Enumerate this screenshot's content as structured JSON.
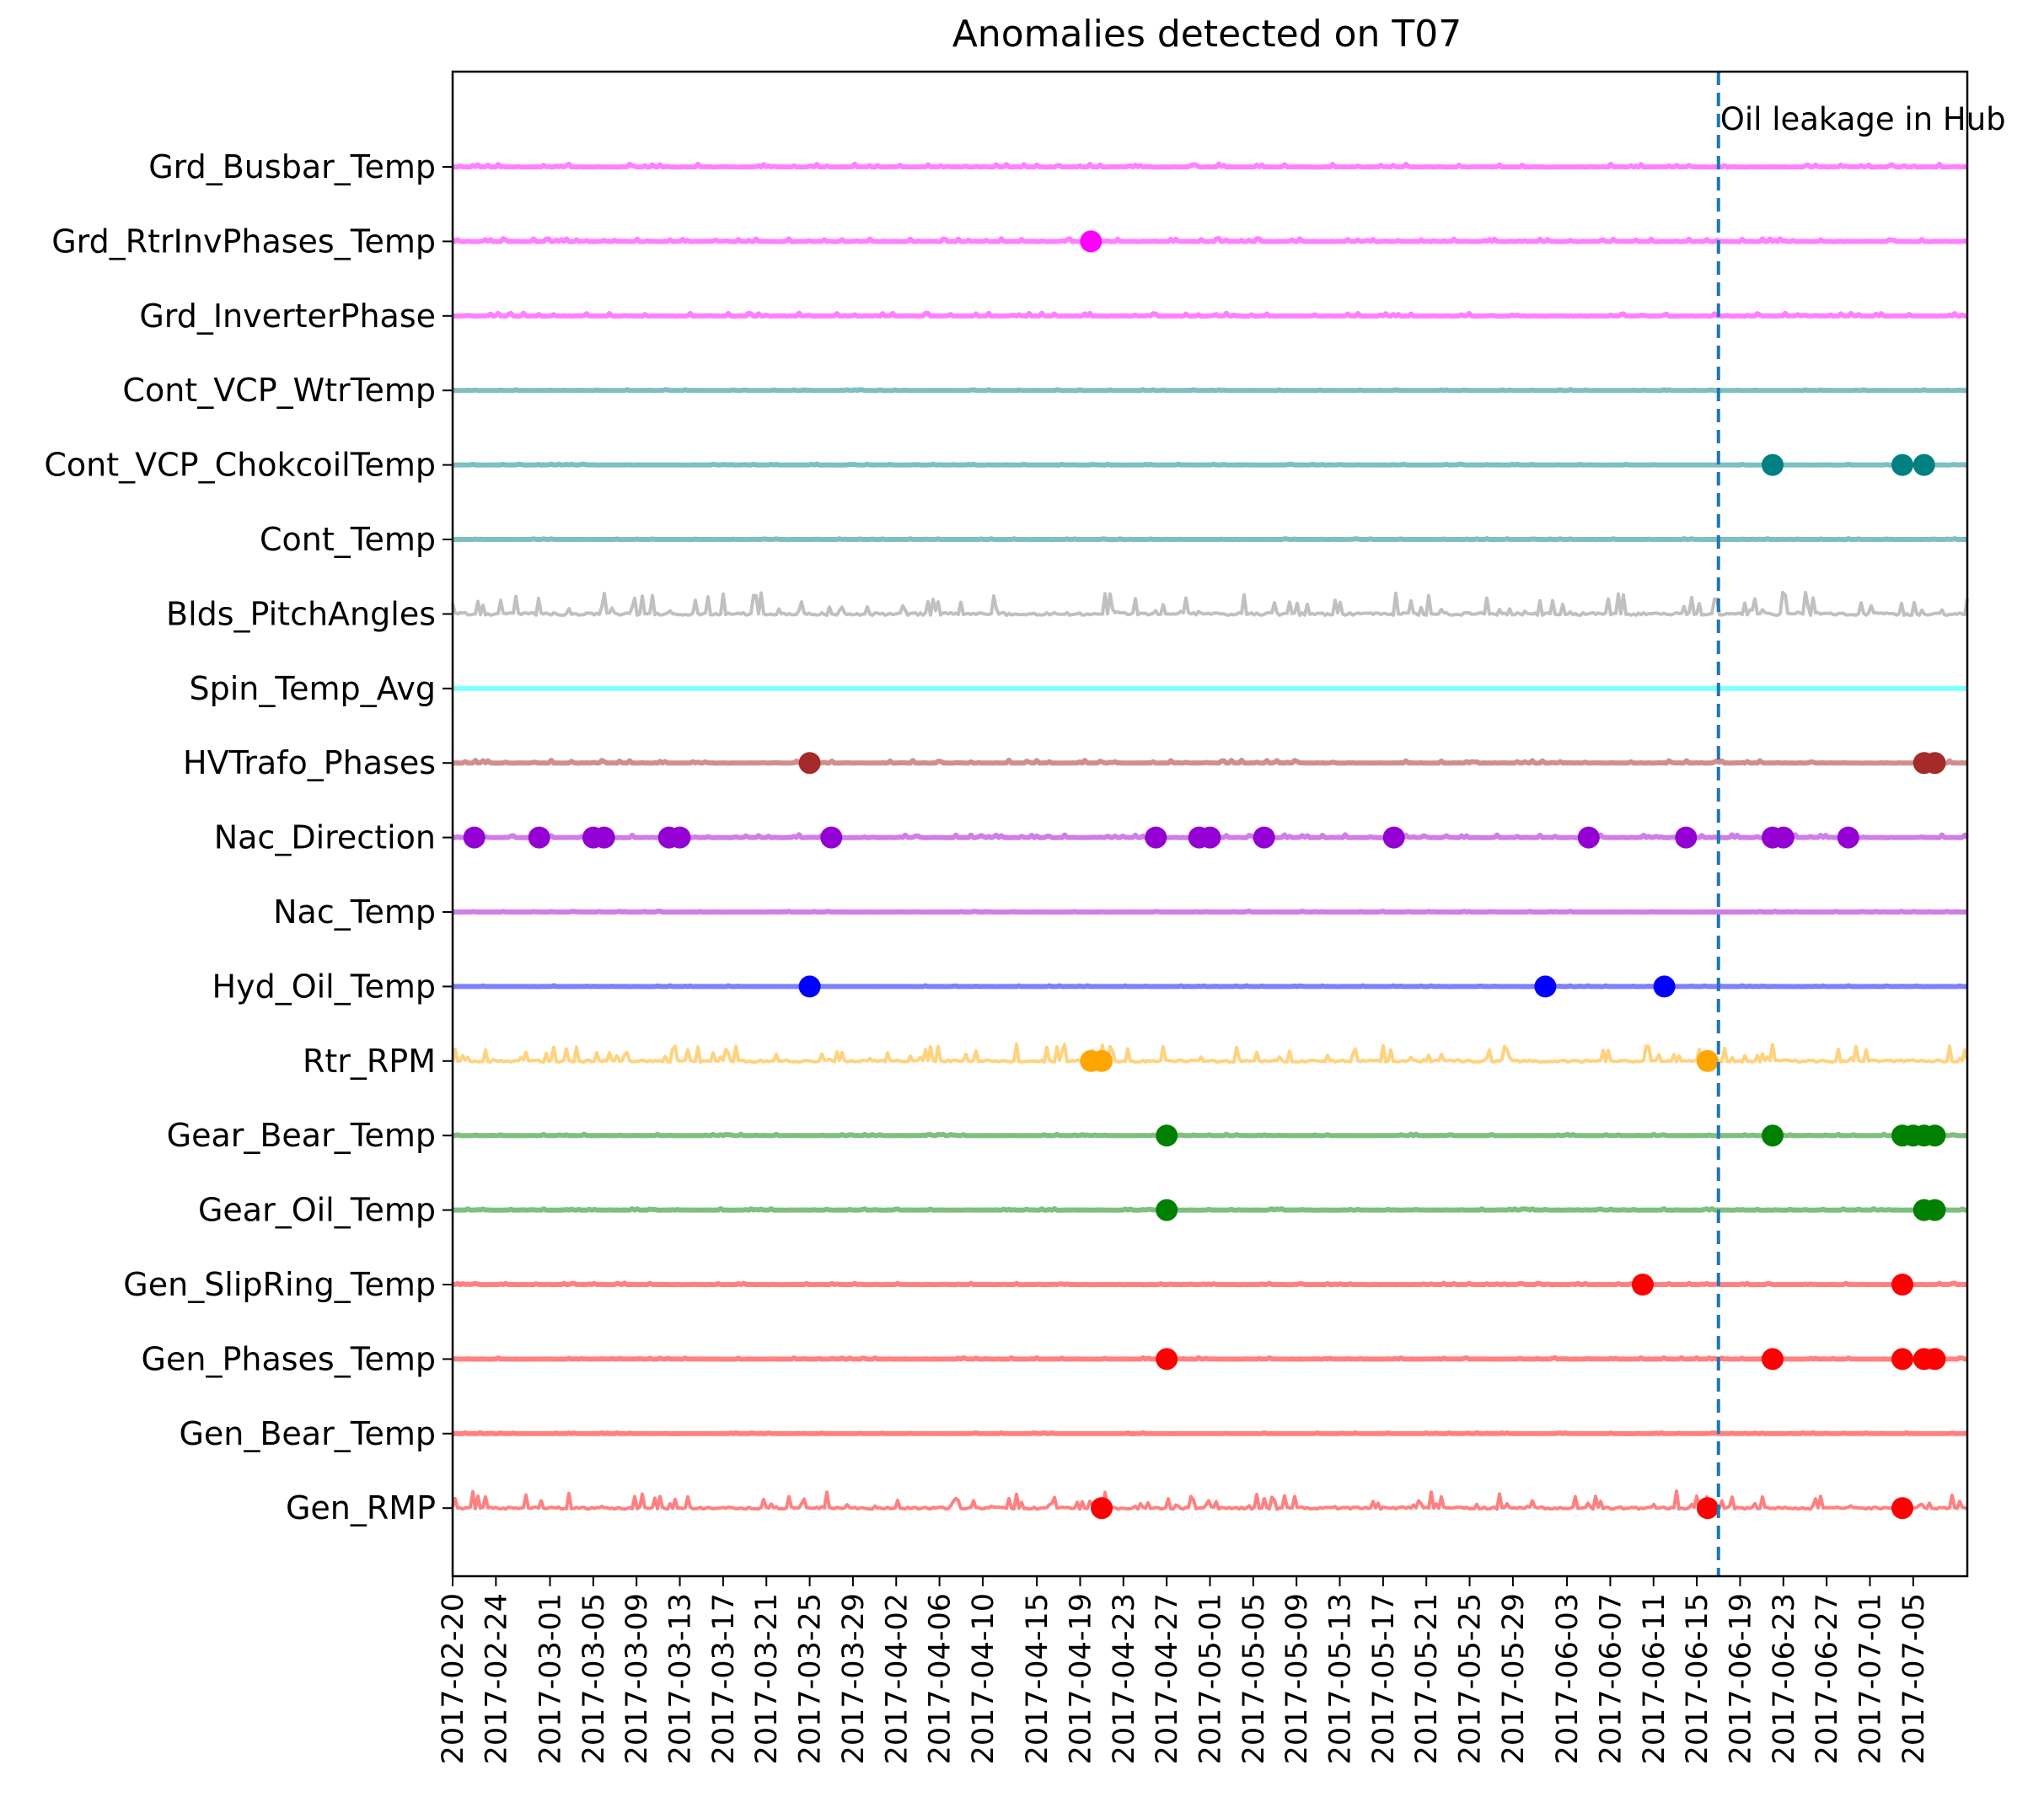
{
  "chart_data": {
    "type": "scatter",
    "title": "Anomalies detected on T07",
    "xlabel": "",
    "ylabel": "",
    "grid": false,
    "x_range": [
      "2017-02-20",
      "2017-07-10"
    ],
    "x_tick_labels": [
      "2017-02-20",
      "2017-02-24",
      "2017-03-01",
      "2017-03-05",
      "2017-03-09",
      "2017-03-13",
      "2017-03-17",
      "2017-03-21",
      "2017-03-25",
      "2017-03-29",
      "2017-04-02",
      "2017-04-06",
      "2017-04-10",
      "2017-04-15",
      "2017-04-19",
      "2017-04-23",
      "2017-04-27",
      "2017-05-01",
      "2017-05-05",
      "2017-05-09",
      "2017-05-13",
      "2017-05-17",
      "2017-05-21",
      "2017-05-25",
      "2017-05-29",
      "2017-06-03",
      "2017-06-07",
      "2017-06-11",
      "2017-06-15",
      "2017-06-19",
      "2017-06-23",
      "2017-06-27",
      "2017-07-01",
      "2017-07-05"
    ],
    "annotation": {
      "date": "2017-06-17",
      "label": "Oil leakage in Hub",
      "color": "#1f77b4",
      "style": "dashed"
    },
    "series": [
      {
        "name": "Grd_Busbar_Temp",
        "line_color": "#ff80ff",
        "marker_color": "#ff00ff",
        "noise": 1,
        "anomalies": []
      },
      {
        "name": "Grd_RtrInvPhases_Temp",
        "line_color": "#ff80ff",
        "marker_color": "#ff00ff",
        "noise": 1,
        "anomalies": [
          "2017-04-20"
        ]
      },
      {
        "name": "Grd_InverterPhase",
        "line_color": "#ff80ff",
        "marker_color": "#ff00ff",
        "noise": 1,
        "anomalies": []
      },
      {
        "name": "Cont_VCP_WtrTemp",
        "line_color": "#80bfbf",
        "marker_color": "#008080",
        "noise": 0.3,
        "anomalies": []
      },
      {
        "name": "Cont_VCP_ChokcoilTemp",
        "line_color": "#80bfbf",
        "marker_color": "#008080",
        "noise": 0.3,
        "anomalies": [
          "2017-06-22",
          "2017-07-04",
          "2017-07-06"
        ]
      },
      {
        "name": "Cont_Temp",
        "line_color": "#80bfbf",
        "marker_color": "#008080",
        "noise": 0.3,
        "anomalies": []
      },
      {
        "name": "Blds_PitchAngles",
        "line_color": "#c0c0c0",
        "marker_color": "#808080",
        "noise": 8,
        "anomalies": []
      },
      {
        "name": "Spin_Temp_Avg",
        "line_color": "#80ffff",
        "marker_color": "#00ffff",
        "noise": 0,
        "anomalies": []
      },
      {
        "name": "HVTrafo_Phases",
        "line_color": "#d08e8e",
        "marker_color": "#a52a2a",
        "noise": 1,
        "anomalies": [
          "2017-03-25",
          "2017-07-06",
          "2017-07-07"
        ]
      },
      {
        "name": "Nac_Direction",
        "line_color": "#cf7de8",
        "marker_color": "#9400d3",
        "noise": 1,
        "anomalies": [
          "2017-02-22",
          "2017-02-28",
          "2017-03-05",
          "2017-03-06",
          "2017-03-12",
          "2017-03-13",
          "2017-03-27",
          "2017-04-26",
          "2017-04-30",
          "2017-05-01",
          "2017-05-06",
          "2017-05-18",
          "2017-06-05",
          "2017-06-14",
          "2017-06-22",
          "2017-06-23",
          "2017-06-29"
        ]
      },
      {
        "name": "Nac_Temp",
        "line_color": "#cf7de8",
        "marker_color": "#9400d3",
        "noise": 0.3,
        "anomalies": []
      },
      {
        "name": "Hyd_Oil_Temp",
        "line_color": "#7f7fff",
        "marker_color": "#0000ff",
        "noise": 0.3,
        "anomalies": [
          "2017-03-25",
          "2017-06-01",
          "2017-06-12"
        ]
      },
      {
        "name": "Rtr_RPM",
        "line_color": "#ffd27f",
        "marker_color": "#ffa500",
        "noise": 6,
        "anomalies": [
          "2017-04-20",
          "2017-04-21",
          "2017-06-16"
        ]
      },
      {
        "name": "Gear_Bear_Temp",
        "line_color": "#80bf80",
        "marker_color": "#008000",
        "noise": 0.5,
        "anomalies": [
          "2017-04-27",
          "2017-06-22",
          "2017-07-04",
          "2017-07-05",
          "2017-07-06",
          "2017-07-07"
        ]
      },
      {
        "name": "Gear_Oil_Temp",
        "line_color": "#80bf80",
        "marker_color": "#008000",
        "noise": 0.5,
        "anomalies": [
          "2017-04-27",
          "2017-07-06",
          "2017-07-07"
        ]
      },
      {
        "name": "Gen_SlipRing_Temp",
        "line_color": "#ff8080",
        "marker_color": "#ff0000",
        "noise": 0.5,
        "anomalies": [
          "2017-06-10",
          "2017-07-04"
        ]
      },
      {
        "name": "Gen_Phases_Temp",
        "line_color": "#ff8080",
        "marker_color": "#ff0000",
        "noise": 0.5,
        "anomalies": [
          "2017-04-27",
          "2017-06-22",
          "2017-07-04",
          "2017-07-06",
          "2017-07-07"
        ]
      },
      {
        "name": "Gen_Bear_Temp",
        "line_color": "#ff8080",
        "marker_color": "#ff0000",
        "noise": 0.3,
        "anomalies": []
      },
      {
        "name": "Gen_RMP",
        "line_color": "#ff8080",
        "marker_color": "#ff0000",
        "noise": 6,
        "anomalies": [
          "2017-04-21",
          "2017-06-16",
          "2017-07-04"
        ]
      }
    ]
  }
}
